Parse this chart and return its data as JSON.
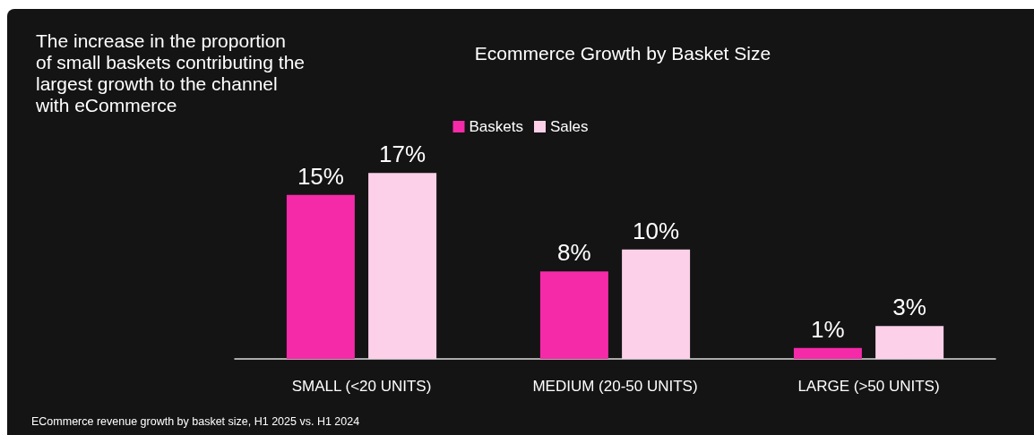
{
  "chart_data": {
    "type": "bar",
    "title": "Ecommerce Growth by Basket Size",
    "categories": [
      "SMALL (<20 UNITS)",
      "MEDIUM (20-50 UNITS)",
      "LARGE (>50 UNITS)"
    ],
    "series": [
      {
        "name": "Baskets",
        "color": "#f52aa9",
        "values": [
          15,
          8,
          1
        ],
        "value_labels": [
          "15%",
          "8%",
          "1%"
        ]
      },
      {
        "name": "Sales",
        "color": "#fcd0e8",
        "values": [
          17,
          10,
          3
        ],
        "value_labels": [
          "17%",
          "10%",
          "3%"
        ]
      }
    ],
    "annotations": [
      "The increase in the proportion of small baskets contributing the largest growth to the channel with eCommerce",
      "ECommerce revenue growth by basket size, H1 2025 vs. H1 2024"
    ],
    "legend": "top",
    "grid": false
  }
}
